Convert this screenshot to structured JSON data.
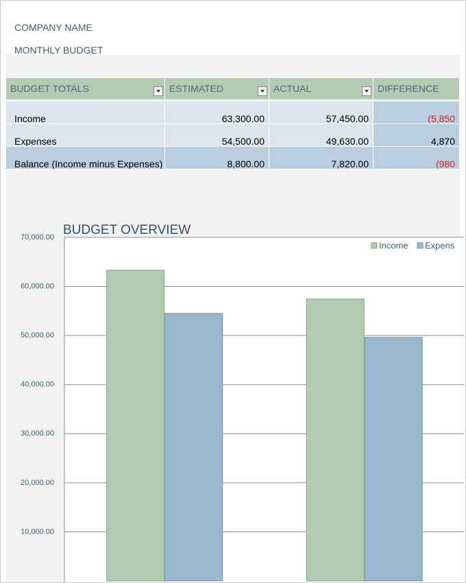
{
  "header": {
    "company": "COMPANY NAME",
    "subtitle": "MONTHLY BUDGET"
  },
  "table": {
    "headers": [
      "BUDGET TOTALS",
      "ESTIMATED",
      "ACTUAL",
      "DIFFERENCE"
    ],
    "rows": [
      [
        "Income",
        "63,300.00",
        "57,450.00",
        "(5,850"
      ],
      [
        "Expenses",
        "54,500.00",
        "49,630.00",
        "4,870"
      ],
      [
        "Balance (Income minus Expenses)",
        "8,800.00",
        "7,820.00",
        "(980"
      ]
    ]
  },
  "chart_data": {
    "type": "bar",
    "title": "BUDGET OVERVIEW",
    "categories": [
      null,
      null
    ],
    "series": [
      {
        "name": "Income",
        "color": "#b3cbb0",
        "values": [
          63300,
          57450
        ]
      },
      {
        "name": "Expens",
        "color": "#9ab8cc",
        "values": [
          54500,
          49630
        ]
      }
    ],
    "ylim": [
      0,
      70000
    ],
    "yticks": [
      {
        "value": 10000,
        "label": "10,000.00"
      },
      {
        "value": 20000,
        "label": "20,000.00"
      },
      {
        "value": 30000,
        "label": "30,000.00"
      },
      {
        "value": 40000,
        "label": "40,000.00"
      },
      {
        "value": 50000,
        "label": "50,000.00"
      },
      {
        "value": 60000,
        "label": "60,000.00"
      },
      {
        "value": 70000,
        "label": "70,000.00"
      }
    ],
    "grid": true,
    "legend": "top-right"
  }
}
